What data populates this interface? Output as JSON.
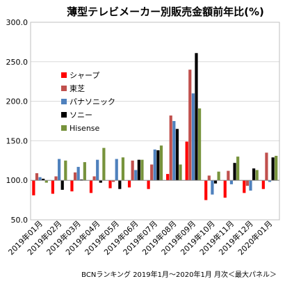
{
  "chart_data": {
    "type": "bar",
    "title": "薄型テレビメーカー別販売金額前年比(%)",
    "source": "BCNランキング 2019年1月～2020年1月 月次＜最大パネル＞",
    "ylim": [
      50,
      300
    ],
    "yticks": [
      "300.0",
      "250.0",
      "200.0",
      "150.0",
      "100.0",
      "50.0"
    ],
    "ytick_values": [
      300,
      250,
      200,
      150,
      100,
      50
    ],
    "baseline": 100,
    "grid": true,
    "legend_position": "left",
    "categories": [
      "2019年01月",
      "2019年02月",
      "2019年03月",
      "2019年04月",
      "2019年05月",
      "2019年06月",
      "2019年07月",
      "2019年08月",
      "2019年09月",
      "2019年10月",
      "2019年11月",
      "2019年12月",
      "2020年01月"
    ],
    "series": [
      {
        "name": "シャープ",
        "color": "#ff0000",
        "values": [
          81,
          83,
          86,
          84,
          90,
          91,
          89,
          108,
          149,
          75,
          78,
          84,
          89
        ]
      },
      {
        "name": "東芝",
        "color": "#c0504d",
        "values": [
          109,
          105,
          110,
          105,
          98,
          125,
          120,
          182,
          240,
          106,
          112,
          93,
          135
        ]
      },
      {
        "name": "パナソニック",
        "color": "#4f81bd",
        "values": [
          104,
          127,
          117,
          126,
          127,
          113,
          139,
          175,
          210,
          82,
          95,
          87,
          98
        ]
      },
      {
        "name": "ソニー",
        "color": "#000000",
        "values": [
          102,
          88,
          101,
          97,
          89,
          126,
          138,
          165,
          261,
          96,
          122,
          115,
          129
        ]
      },
      {
        "name": "Hisense",
        "color": "#77933c",
        "values": [
          97,
          125,
          123,
          141,
          129,
          126,
          144,
          120,
          191,
          111,
          130,
          113,
          131
        ]
      }
    ]
  }
}
